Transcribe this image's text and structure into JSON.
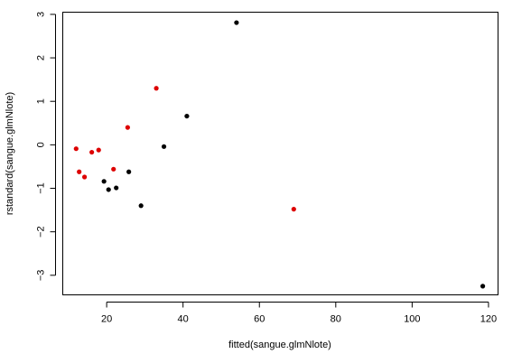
{
  "chart_data": {
    "type": "scatter",
    "title": "",
    "xlabel": "fitted(sangue.glmNlote)",
    "ylabel": "rstandard(sangue.glmNlote)",
    "xlim": [
      8.5,
      122.5
    ],
    "ylim": [
      -3.45,
      3.05
    ],
    "xticks": [
      20,
      40,
      60,
      80,
      100,
      120
    ],
    "yticks": [
      -3,
      -2,
      -1,
      0,
      1,
      2,
      3
    ],
    "xtick_labels": [
      "20",
      "40",
      "60",
      "80",
      "100",
      "120"
    ],
    "ytick_labels": [
      "−3",
      "−2",
      "−1",
      "0",
      "1",
      "2",
      "3"
    ],
    "grid": false,
    "legend": "none",
    "point_colors": {
      "black": "#000000",
      "red": "#dd0000"
    },
    "series": [
      {
        "color": "black",
        "x": [
          19.3,
          20.5,
          22.5,
          25.8,
          29.0,
          35.0,
          41.0,
          54.0,
          118.5
        ],
        "y": [
          -0.84,
          -1.03,
          -0.99,
          -0.62,
          -1.4,
          -0.04,
          0.66,
          2.81,
          -3.25
        ]
      },
      {
        "color": "red",
        "x": [
          12.0,
          12.8,
          14.2,
          16.1,
          17.9,
          21.8,
          25.5,
          33.0,
          69.0
        ],
        "y": [
          -0.09,
          -0.62,
          -0.74,
          -0.17,
          -0.12,
          -0.56,
          0.4,
          1.3,
          -1.48
        ]
      }
    ]
  }
}
